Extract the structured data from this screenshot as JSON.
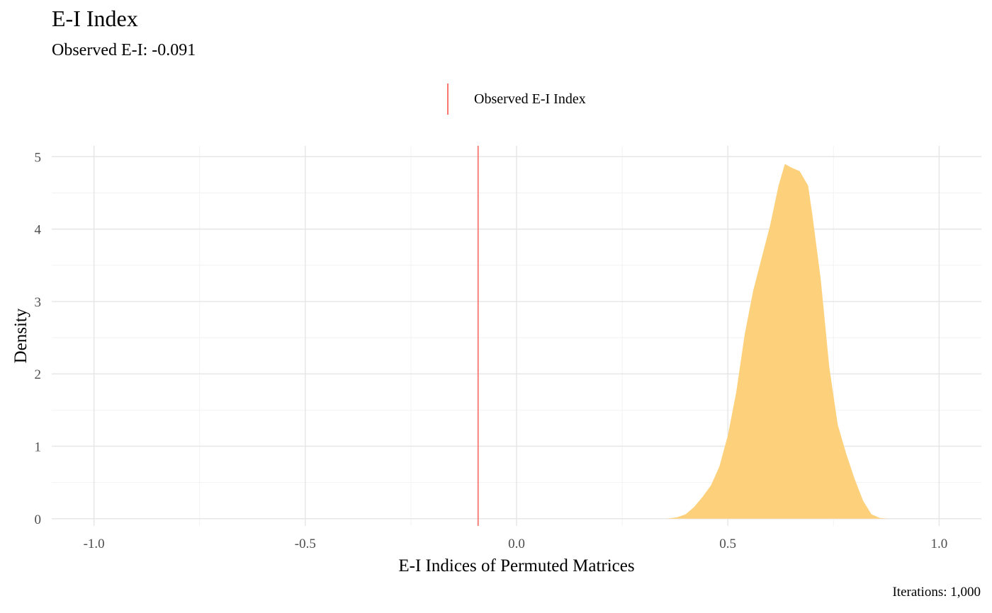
{
  "chart_data": {
    "type": "area",
    "title": "E-I Index",
    "subtitle": "Observed E-I: -0.091",
    "xlabel": "E-I Indices of Permuted Matrices",
    "ylabel": "Density",
    "caption": "Iterations: 1,000",
    "xlim": [
      -1.1,
      1.1
    ],
    "ylim": [
      -0.1,
      5.15
    ],
    "x_ticks": [
      -1.0,
      -0.5,
      0.0,
      0.5,
      1.0
    ],
    "x_tick_labels": [
      "-1.0",
      "-0.5",
      "0.0",
      "0.5",
      "1.0"
    ],
    "y_ticks": [
      0,
      1,
      2,
      3,
      4,
      5
    ],
    "y_tick_labels": [
      "0",
      "1",
      "2",
      "3",
      "4",
      "5"
    ],
    "grid": true,
    "legend_position": "top",
    "reference_line": {
      "name": "Observed E-I Index",
      "x": -0.091,
      "color": "#f8766d"
    },
    "series": [
      {
        "fill": "#fdd17b",
        "x": [
          0.355,
          0.38,
          0.4,
          0.42,
          0.44,
          0.46,
          0.48,
          0.5,
          0.52,
          0.54,
          0.56,
          0.58,
          0.6,
          0.62,
          0.635,
          0.65,
          0.67,
          0.69,
          0.7,
          0.72,
          0.74,
          0.76,
          0.78,
          0.8,
          0.82,
          0.84,
          0.86,
          0.88
        ],
        "values": [
          0.0,
          0.02,
          0.06,
          0.16,
          0.3,
          0.46,
          0.72,
          1.15,
          1.75,
          2.55,
          3.15,
          3.6,
          4.05,
          4.6,
          4.9,
          4.85,
          4.8,
          4.6,
          4.2,
          3.3,
          2.1,
          1.3,
          0.9,
          0.55,
          0.25,
          0.06,
          0.01,
          0.0
        ]
      }
    ]
  }
}
